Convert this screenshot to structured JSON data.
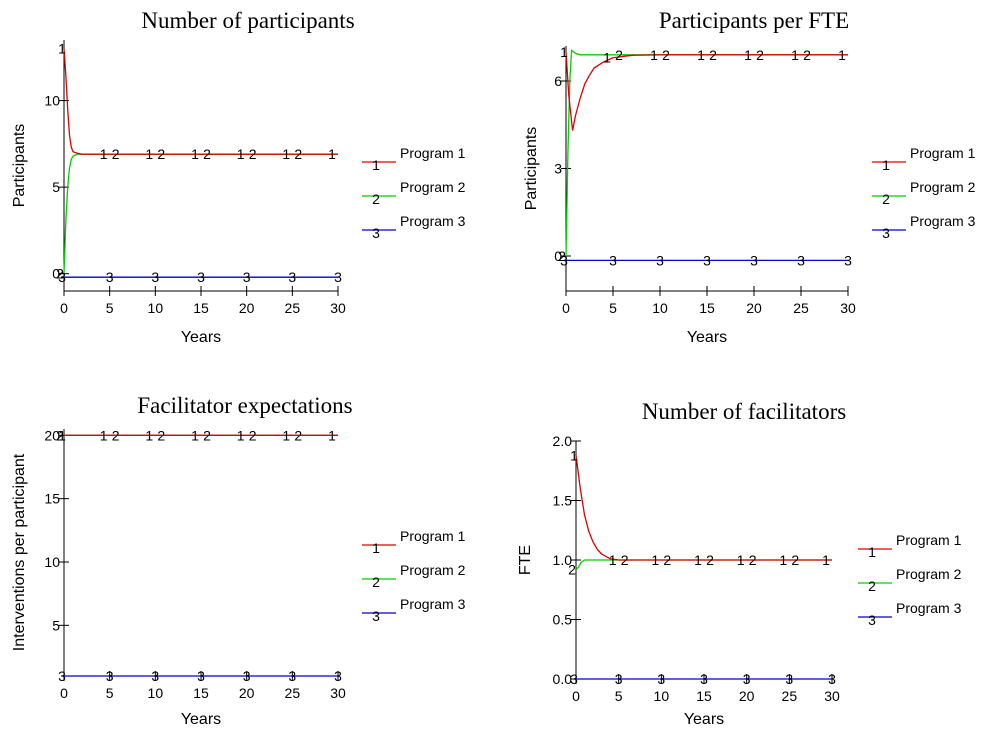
{
  "chart_data": [
    {
      "type": "line",
      "title": "Number of participants",
      "xlabel": "Years",
      "ylabel": "Participants",
      "xlim": [
        0,
        30
      ],
      "ylim": [
        -1,
        13.5
      ],
      "xticks": [
        0,
        5,
        10,
        15,
        20,
        25,
        30
      ],
      "yticks": [
        0,
        5,
        10
      ],
      "xtick_labels": [
        "0",
        "5",
        "10",
        "15",
        "20",
        "25",
        "30"
      ],
      "ytick_labels": [
        "0",
        "5",
        "10"
      ],
      "grid": false,
      "legend_position": "right",
      "series": [
        {
          "name": "Program 1",
          "color": "#e00000",
          "marker": "1",
          "x": [
            0,
            0.2,
            0.4,
            0.6,
            0.8,
            1,
            1.5,
            2,
            3,
            5,
            10,
            15,
            20,
            25,
            30
          ],
          "y": [
            13,
            11.5,
            9.5,
            8,
            7.3,
            7.05,
            6.95,
            6.9,
            6.9,
            6.9,
            6.9,
            6.9,
            6.9,
            6.9,
            6.9
          ]
        },
        {
          "name": "Program 2",
          "color": "#00d000",
          "marker": "2",
          "x": [
            0,
            0.2,
            0.4,
            0.6,
            0.8,
            1,
            1.5,
            2,
            3,
            5,
            10,
            15,
            20,
            25,
            30
          ],
          "y": [
            0,
            3,
            5,
            6.1,
            6.6,
            6.8,
            6.9,
            6.9,
            6.9,
            6.9,
            6.9,
            6.9,
            6.9,
            6.9,
            6.9
          ]
        },
        {
          "name": "Program 3",
          "color": "#0000d0",
          "marker": "3",
          "x": [
            0,
            30
          ],
          "y": [
            -0.2,
            -0.2
          ]
        }
      ]
    },
    {
      "type": "line",
      "title": "Participants per FTE",
      "xlabel": "Years",
      "ylabel": "Participants",
      "xlim": [
        0,
        30
      ],
      "ylim": [
        -1.2,
        7.2
      ],
      "xticks": [
        0,
        5,
        10,
        15,
        20,
        25,
        30
      ],
      "yticks": [
        0,
        3,
        6
      ],
      "xtick_labels": [
        "0",
        "5",
        "10",
        "15",
        "20",
        "25",
        "30"
      ],
      "ytick_labels": [
        "0",
        "3",
        "6"
      ],
      "grid": false,
      "legend_position": "right",
      "series": [
        {
          "name": "Program 1",
          "color": "#e00000",
          "marker": "1",
          "x": [
            0,
            0.3,
            0.7,
            1,
            1.5,
            2,
            2.5,
            3,
            4,
            5,
            7,
            10,
            15,
            20,
            25,
            30
          ],
          "y": [
            7,
            5.5,
            4.3,
            4.8,
            5.4,
            5.9,
            6.2,
            6.45,
            6.65,
            6.8,
            6.88,
            6.9,
            6.9,
            6.9,
            6.9,
            6.9
          ]
        },
        {
          "name": "Program 2",
          "color": "#00d000",
          "marker": "2",
          "x": [
            0,
            0.2,
            0.4,
            0.6,
            0.8,
            1,
            1.5,
            2,
            3,
            5,
            10,
            15,
            20,
            25,
            30
          ],
          "y": [
            0,
            3.5,
            6,
            7.05,
            7.0,
            6.95,
            6.9,
            6.9,
            6.9,
            6.9,
            6.9,
            6.9,
            6.9,
            6.9,
            6.9
          ]
        },
        {
          "name": "Program 3",
          "color": "#0000d0",
          "marker": "3",
          "x": [
            0,
            30
          ],
          "y": [
            -0.15,
            -0.15
          ]
        }
      ]
    },
    {
      "type": "line",
      "title": "Facilitator expectations",
      "xlabel": "Years",
      "ylabel": "Interventions per participant",
      "xlim": [
        0,
        30
      ],
      "ylim": [
        1,
        20.5
      ],
      "xticks": [
        0,
        5,
        10,
        15,
        20,
        25,
        30
      ],
      "yticks": [
        5,
        10,
        15,
        20
      ],
      "xtick_labels": [
        "0",
        "5",
        "10",
        "15",
        "20",
        "25",
        "30"
      ],
      "ytick_labels": [
        "5",
        "10",
        "15",
        "20"
      ],
      "grid": false,
      "legend_position": "right",
      "series": [
        {
          "name": "Program 1",
          "color": "#e00000",
          "marker": "1",
          "x": [
            0,
            30
          ],
          "y": [
            20,
            20
          ]
        },
        {
          "name": "Program 2",
          "color": "#00d000",
          "marker": "2",
          "x": [
            0,
            30
          ],
          "y": [
            20,
            20
          ]
        },
        {
          "name": "Program 3",
          "color": "#0000d0",
          "marker": "3",
          "x": [
            0,
            30
          ],
          "y": [
            1,
            1
          ]
        }
      ]
    },
    {
      "type": "line",
      "title": "Number of facilitators",
      "xlabel": "Years",
      "ylabel": "FTE",
      "xlim": [
        0,
        30
      ],
      "ylim": [
        0,
        2.0
      ],
      "xticks": [
        0,
        5,
        10,
        15,
        20,
        25,
        30
      ],
      "yticks": [
        0.0,
        0.5,
        1.0,
        1.5,
        2.0
      ],
      "xtick_labels": [
        "0",
        "5",
        "10",
        "15",
        "20",
        "25",
        "30"
      ],
      "ytick_labels": [
        "0.0",
        "0.5",
        "1.0",
        "1.5",
        "2.0"
      ],
      "grid": false,
      "legend_position": "right",
      "series": [
        {
          "name": "Program 1",
          "color": "#e00000",
          "marker": "1",
          "x": [
            0,
            0.5,
            1,
            1.5,
            2,
            2.5,
            3,
            3.5,
            4,
            5,
            10,
            15,
            20,
            25,
            30
          ],
          "y": [
            1.88,
            1.6,
            1.38,
            1.24,
            1.15,
            1.09,
            1.05,
            1.03,
            1.01,
            1.0,
            1.0,
            1.0,
            1.0,
            1.0,
            1.0
          ]
        },
        {
          "name": "Program 2",
          "color": "#00d000",
          "marker": "2",
          "x": [
            0,
            0.3,
            0.6,
            1,
            2,
            5,
            10,
            15,
            20,
            25,
            30
          ],
          "y": [
            0.92,
            0.94,
            0.98,
            1.0,
            1.0,
            1.0,
            1.0,
            1.0,
            1.0,
            1.0,
            1.0
          ]
        },
        {
          "name": "Program 3",
          "color": "#0000d0",
          "marker": "3",
          "x": [
            0,
            30
          ],
          "y": [
            0,
            0
          ]
        }
      ]
    }
  ]
}
